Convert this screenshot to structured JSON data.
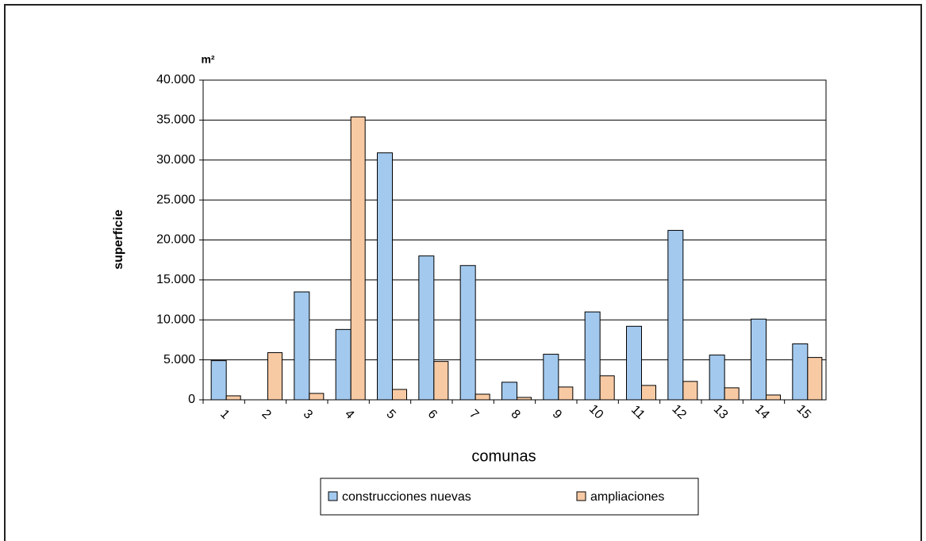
{
  "chart_data": {
    "type": "bar",
    "unit_label": "m²",
    "y_label": "superficie",
    "x_label": "comunas",
    "categories": [
      "1",
      "2",
      "3",
      "4",
      "5",
      "6",
      "7",
      "8",
      "9",
      "10",
      "11",
      "12",
      "13",
      "14",
      "15"
    ],
    "series": [
      {
        "name": "construcciones nuevas",
        "color": "#a3c9ee",
        "values": [
          4900,
          0,
          13500,
          8800,
          30900,
          18000,
          16800,
          2200,
          5700,
          11000,
          9200,
          21200,
          5600,
          10100,
          7000
        ]
      },
      {
        "name": "ampliaciones",
        "color": "#f8caa4",
        "values": [
          500,
          5900,
          800,
          35400,
          1300,
          4800,
          700,
          300,
          1600,
          3000,
          1800,
          2300,
          1500,
          600,
          5300
        ]
      }
    ],
    "ylim": [
      0,
      40000
    ],
    "yticks": [
      0,
      {
        "value": 5000,
        "label": "5.000"
      },
      {
        "value": 10000,
        "label": "10.000"
      },
      {
        "value": 15000,
        "label": "15.000"
      },
      {
        "value": 20000,
        "label": "20.000"
      },
      {
        "value": 25000,
        "label": "25.000"
      },
      {
        "value": 30000,
        "label": "30.000"
      },
      {
        "value": 35000,
        "label": "35.000"
      },
      {
        "value": 40000,
        "label": "40.000"
      }
    ],
    "grid": true,
    "legend": "bottom"
  }
}
